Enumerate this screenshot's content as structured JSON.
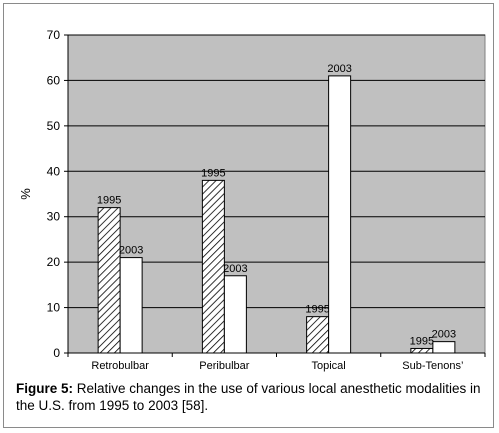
{
  "chart_data": {
    "type": "bar",
    "categories": [
      "Retrobulbar",
      "Peribulbar",
      "Topical",
      "Sub-Tenons’"
    ],
    "series": [
      {
        "name": "1995",
        "values": [
          32,
          38,
          8,
          1
        ],
        "pattern": "hatched"
      },
      {
        "name": "2003",
        "values": [
          21,
          17,
          61,
          2.5
        ],
        "pattern": "white"
      }
    ],
    "ylabel": "%",
    "xlabel": "",
    "ylim": [
      0,
      70
    ],
    "yticks": [
      0,
      10,
      20,
      30,
      40,
      50,
      60,
      70
    ],
    "grid": true,
    "plot_background": "#c0c0c0",
    "bar_fill_color": "#ffffff"
  },
  "caption": {
    "label": "Figure 5:",
    "text": " Relative changes in the use of various local anesthetic modalities in the U.S. from 1995 to 2003 [58]."
  }
}
